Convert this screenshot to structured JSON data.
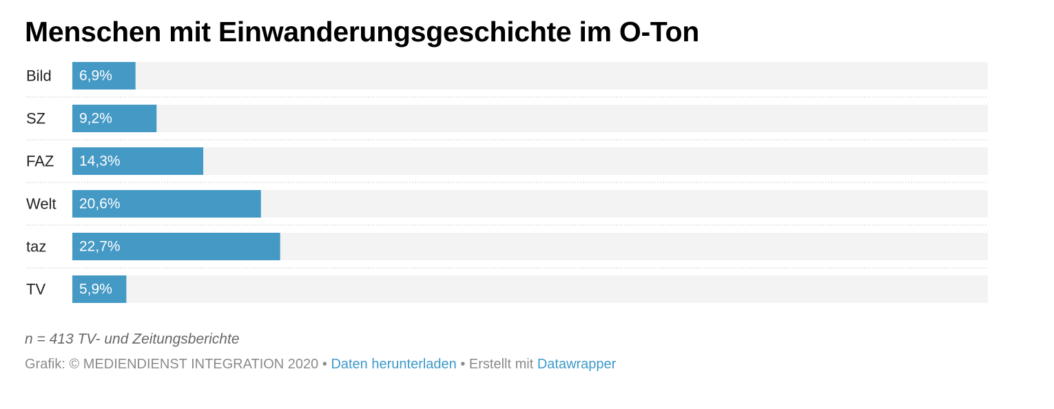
{
  "chart_data": {
    "type": "bar",
    "orientation": "horizontal",
    "title": "Menschen mit Einwanderungsgeschichte im O-Ton",
    "categories": [
      "Bild",
      "SZ",
      "FAZ",
      "Welt",
      "taz",
      "TV"
    ],
    "values": [
      6.9,
      9.2,
      14.3,
      20.6,
      22.7,
      5.9
    ],
    "value_labels": [
      "6,9%",
      "9,2%",
      "14,3%",
      "20,6%",
      "22,7%",
      "5,9%"
    ],
    "unit": "%",
    "xlim": [
      0,
      100
    ],
    "bar_color": "#4599c5",
    "background_track_color": "#f3f3f3",
    "grid": false,
    "legend": "none"
  },
  "note": "n = 413 TV- und Zeitungsberichte",
  "footer": {
    "source": "Grafik: © MEDIENDIENST INTEGRATION 2020",
    "separator": " • ",
    "download_link": "Daten herunterladen",
    "created_with": "Erstellt mit",
    "datawrapper_link": "Datawrapper"
  }
}
